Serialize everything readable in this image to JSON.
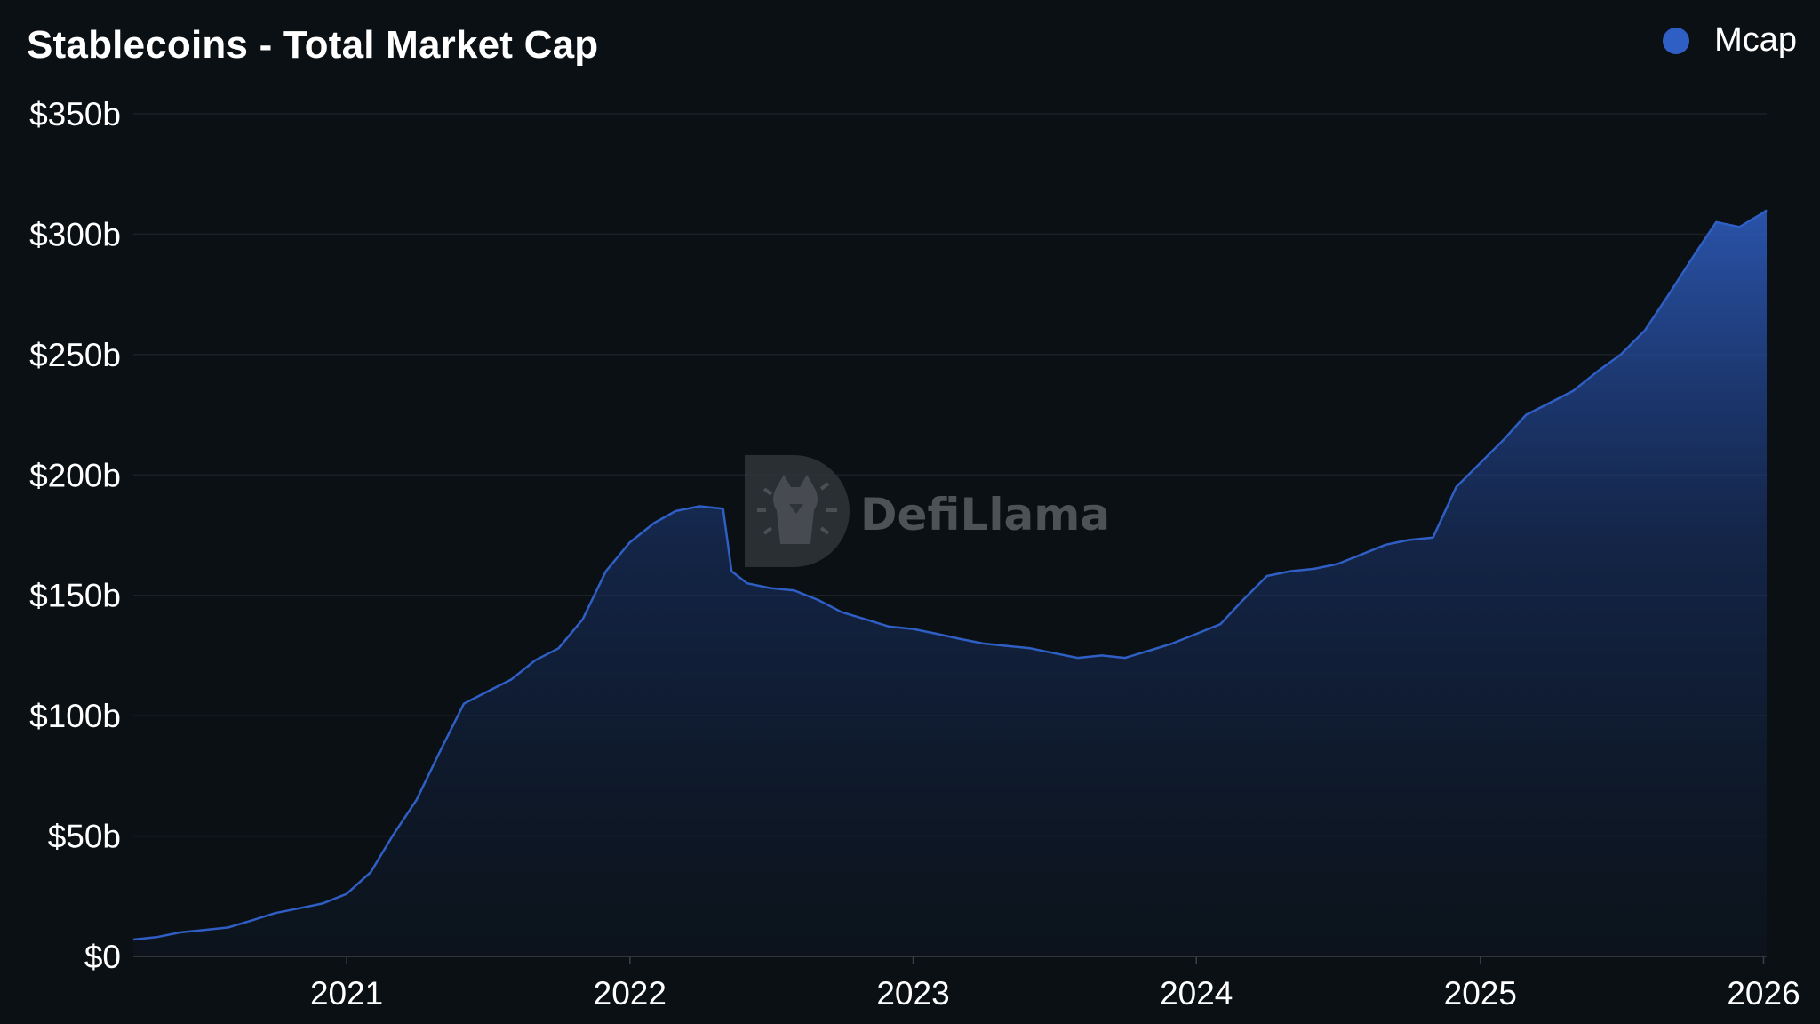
{
  "title": "Stablecoins - Total Market Cap",
  "legend": {
    "label": "Mcap"
  },
  "watermark": "DefiLlama",
  "colors": {
    "background": "#0b1014",
    "series": "#2f5fc4",
    "grid": "#1b2127",
    "text": "#ffffff"
  },
  "chart_data": {
    "type": "area",
    "title": "Stablecoins - Total Market Cap",
    "xlabel": "",
    "ylabel": "",
    "series": [
      {
        "name": "Mcap",
        "x": [
          "2020-04-01",
          "2020-05-01",
          "2020-06-01",
          "2020-07-01",
          "2020-08-01",
          "2020-09-01",
          "2020-10-01",
          "2020-11-01",
          "2020-12-01",
          "2021-01-01",
          "2021-02-01",
          "2021-03-01",
          "2021-04-01",
          "2021-05-01",
          "2021-06-01",
          "2021-07-01",
          "2021-08-01",
          "2021-09-01",
          "2021-10-01",
          "2021-11-01",
          "2021-12-01",
          "2022-01-01",
          "2022-02-01",
          "2022-03-01",
          "2022-04-01",
          "2022-05-01",
          "2022-05-12",
          "2022-06-01",
          "2022-07-01",
          "2022-08-01",
          "2022-09-01",
          "2022-10-01",
          "2022-11-01",
          "2022-12-01",
          "2023-01-01",
          "2023-02-01",
          "2023-03-01",
          "2023-04-01",
          "2023-05-01",
          "2023-06-01",
          "2023-07-01",
          "2023-08-01",
          "2023-09-01",
          "2023-10-01",
          "2023-11-01",
          "2023-12-01",
          "2024-01-01",
          "2024-02-01",
          "2024-03-01",
          "2024-04-01",
          "2024-05-01",
          "2024-06-01",
          "2024-07-01",
          "2024-08-01",
          "2024-09-01",
          "2024-10-01",
          "2024-11-01",
          "2024-12-01",
          "2025-01-01",
          "2025-02-01",
          "2025-03-01",
          "2025-04-01",
          "2025-05-01",
          "2025-06-01",
          "2025-07-01",
          "2025-08-01",
          "2025-09-01",
          "2025-10-01",
          "2025-11-01",
          "2025-12-01",
          "2026-01-01",
          "2026-01-05"
        ],
        "values": [
          7,
          8,
          10,
          11,
          12,
          15,
          18,
          20,
          22,
          26,
          35,
          50,
          65,
          85,
          105,
          110,
          115,
          123,
          128,
          140,
          160,
          172,
          180,
          185,
          187,
          186,
          160,
          155,
          153,
          152,
          148,
          143,
          140,
          137,
          136,
          134,
          132,
          130,
          129,
          128,
          126,
          124,
          125,
          124,
          127,
          130,
          134,
          138,
          148,
          158,
          160,
          161,
          163,
          167,
          171,
          173,
          174,
          195,
          205,
          215,
          225,
          230,
          235,
          243,
          250,
          260,
          275,
          290,
          305,
          303,
          309,
          310
        ]
      }
    ],
    "x_ticks": [
      "2021",
      "2022",
      "2023",
      "2024",
      "2025",
      "2026"
    ],
    "y_ticks": [
      "$0",
      "$50b",
      "$100b",
      "$150b",
      "$200b",
      "$250b",
      "$300b",
      "$350b"
    ],
    "y_tick_values": [
      0,
      50,
      100,
      150,
      200,
      250,
      300,
      350
    ],
    "xlim": [
      "2020-04-01",
      "2026-01-05"
    ],
    "ylim": [
      0,
      350
    ],
    "grid": true,
    "legend_position": "top-right"
  }
}
